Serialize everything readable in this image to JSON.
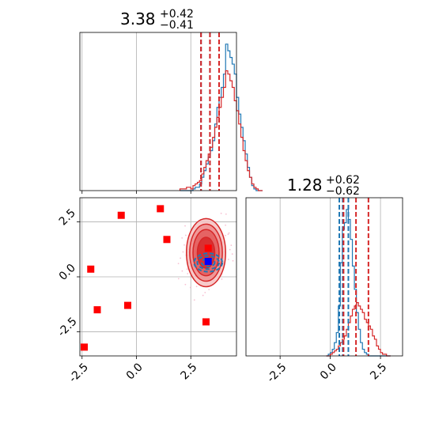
{
  "colors": {
    "series_a": "#1f77b4",
    "series_b": "#d62728",
    "markers": "#ff0000",
    "special_marker": "#0000ff",
    "grid": "#b0b0b0"
  },
  "chart_data": [
    {
      "id": "hist_param1",
      "type": "histogram",
      "title": {
        "median": "3.38",
        "plus": "+0.42",
        "minus": "−0.41"
      },
      "xlim": [
        -2.6,
        4.6
      ],
      "grid": true,
      "series": [
        {
          "color_key": "series_a",
          "bin_start": 2.0,
          "bin_width": 0.1,
          "heights": [
            0,
            0,
            0,
            0,
            0,
            0,
            1,
            2,
            2,
            4,
            8,
            12,
            16,
            20,
            24,
            30,
            40,
            50,
            56,
            62,
            70,
            88,
            84,
            80,
            76,
            70,
            56,
            46,
            38,
            30,
            22,
            14,
            8,
            3,
            1,
            0,
            0,
            0
          ],
          "quantiles": [
            2.97,
            3.38,
            3.8
          ]
        },
        {
          "color_key": "series_b",
          "bin_start": 2.0,
          "bin_width": 0.1,
          "heights": [
            1,
            1,
            1,
            2,
            2,
            1,
            3,
            4,
            5,
            6,
            10,
            14,
            18,
            22,
            26,
            32,
            38,
            44,
            50,
            56,
            62,
            72,
            70,
            66,
            62,
            54,
            48,
            40,
            32,
            24,
            18,
            12,
            8,
            4,
            2,
            1,
            0,
            0
          ],
          "quantiles": [
            2.97,
            3.38,
            3.8
          ]
        }
      ]
    },
    {
      "id": "hist_param2",
      "type": "histogram",
      "title": {
        "median": "1.28",
        "plus": "+0.62",
        "minus": "−0.62"
      },
      "xlim": [
        -4.2,
        3.6
      ],
      "xticks": [
        "-2.5",
        "0.0",
        "2.5"
      ],
      "xtick_values": [
        -2.5,
        0.0,
        2.5
      ],
      "grid": true,
      "series": [
        {
          "color_key": "series_a",
          "bin_start": -0.2,
          "bin_width": 0.1,
          "heights": [
            0,
            1,
            2,
            4,
            8,
            14,
            30,
            56,
            76,
            80,
            88,
            82,
            70,
            54,
            40,
            26,
            16,
            8,
            4,
            2,
            1,
            0,
            0,
            0,
            0,
            0,
            0,
            0,
            0,
            0,
            0,
            0
          ],
          "quantiles": [
            0.45,
            0.62,
            0.9
          ]
        },
        {
          "color_key": "series_b",
          "bin_start": -0.2,
          "bin_width": 0.1,
          "heights": [
            0,
            0,
            1,
            2,
            3,
            4,
            6,
            8,
            10,
            12,
            16,
            20,
            24,
            28,
            30,
            32,
            30,
            28,
            26,
            22,
            20,
            18,
            16,
            12,
            10,
            6,
            4,
            2,
            1,
            1,
            0,
            0
          ],
          "quantiles": [
            0.66,
            1.28,
            1.9
          ]
        }
      ]
    },
    {
      "id": "corner_2d",
      "type": "scatter",
      "xlim": [
        -2.6,
        4.6
      ],
      "ylim": [
        -3.6,
        3.6
      ],
      "xticks": [
        "-2.5",
        "0.0",
        "2.5"
      ],
      "xtick_values": [
        -2.5,
        0.0,
        2.5
      ],
      "yticks": [
        "-2.5",
        "0.0",
        "2.5"
      ],
      "ytick_values": [
        -2.5,
        0.0,
        2.5
      ],
      "grid": true,
      "markers": [
        {
          "x": -0.7,
          "y": 2.8
        },
        {
          "x": 1.1,
          "y": 3.1
        },
        {
          "x": 1.4,
          "y": 1.7
        },
        {
          "x": -2.1,
          "y": 0.35
        },
        {
          "x": -1.8,
          "y": -1.5
        },
        {
          "x": -0.4,
          "y": -1.3
        },
        {
          "x": 3.2,
          "y": -2.05
        },
        {
          "x": -2.4,
          "y": -3.2
        },
        {
          "x": 3.3,
          "y": 1.3
        }
      ],
      "special_marker": {
        "x": 3.3,
        "y": 0.7
      },
      "contours_b": {
        "center": [
          3.2,
          1.1
        ],
        "radii": [
          [
            0.4,
            0.7
          ],
          [
            0.6,
            1.05
          ],
          [
            0.75,
            1.3
          ],
          [
            0.9,
            1.55
          ]
        ]
      },
      "contours_a": {
        "center": [
          3.3,
          0.65
        ],
        "radii": [
          [
            0.3,
            0.18
          ],
          [
            0.5,
            0.3
          ],
          [
            0.65,
            0.42
          ]
        ]
      }
    }
  ]
}
